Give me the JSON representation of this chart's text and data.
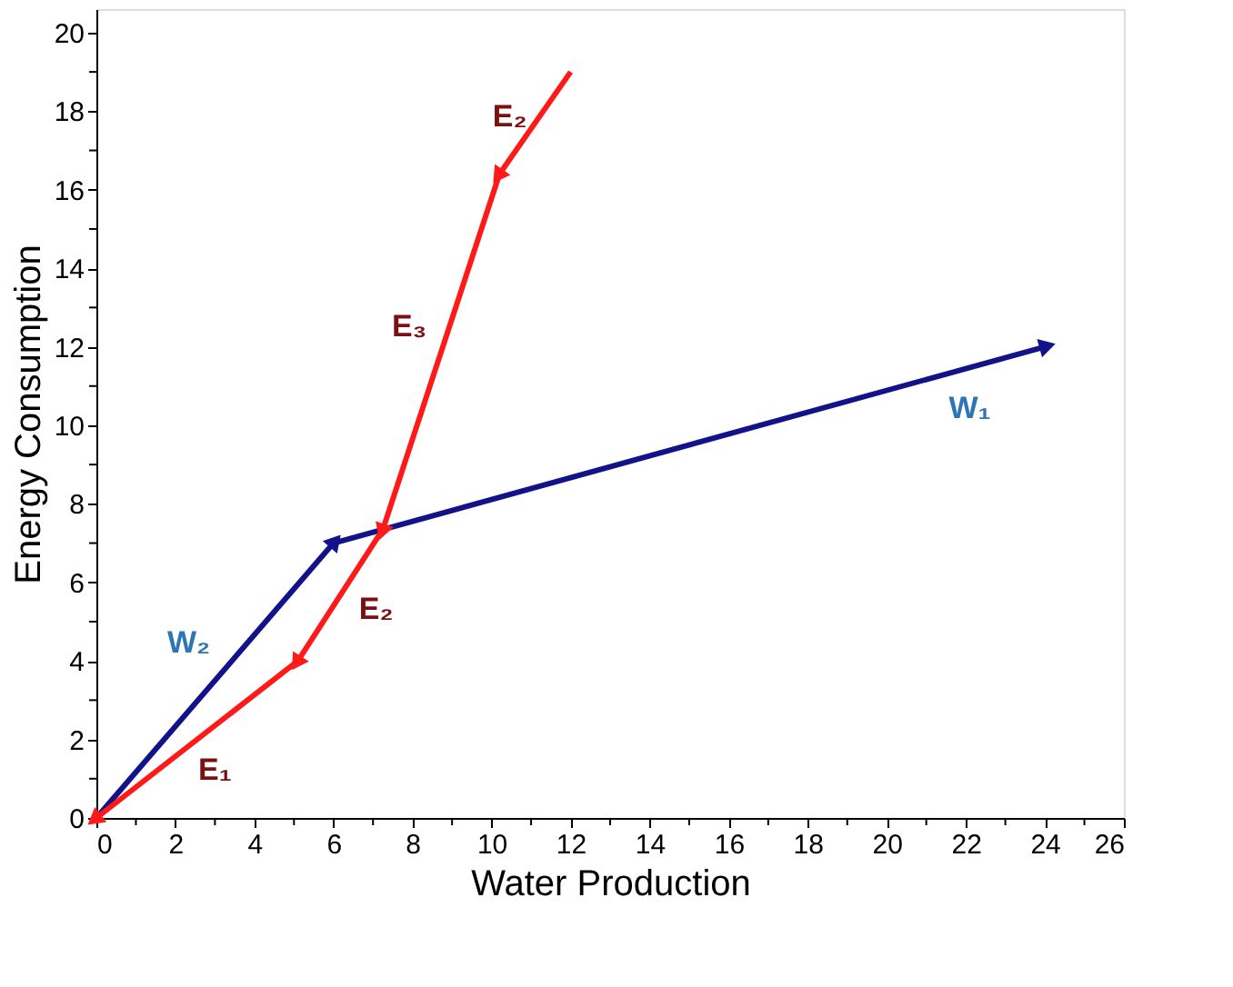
{
  "chart_data": {
    "type": "line",
    "xlabel": "Water Production",
    "ylabel": "Energy Consumption",
    "xlim": [
      0,
      26
    ],
    "ylim": [
      0,
      20.6
    ],
    "xticks": [
      0,
      {
        "value": 1,
        "label": null
      },
      2,
      {
        "value": 3,
        "label": null
      },
      4,
      {
        "value": 5,
        "label": null
      },
      6,
      {
        "value": 7,
        "label": null
      },
      8,
      {
        "value": 9,
        "label": null
      },
      10,
      {
        "value": 11,
        "label": null
      },
      12,
      {
        "value": 13,
        "label": null
      },
      14,
      {
        "value": 15,
        "label": null
      },
      16,
      {
        "value": 17,
        "label": null
      },
      18,
      {
        "value": 19,
        "label": null
      },
      20,
      {
        "value": 21,
        "label": null
      },
      22,
      {
        "value": 23,
        "label": null
      },
      24,
      {
        "value": 25,
        "label": null
      },
      26
    ],
    "yticks": [
      0,
      {
        "value": 1,
        "label": null
      },
      2,
      {
        "value": 3,
        "label": null
      },
      4,
      {
        "value": 5,
        "label": null
      },
      6,
      {
        "value": 7,
        "label": null
      },
      8,
      {
        "value": 9,
        "label": null
      },
      10,
      {
        "value": 11,
        "label": null
      },
      12,
      {
        "value": 13,
        "label": null
      },
      14,
      {
        "value": 15,
        "label": null
      },
      16,
      {
        "value": 17,
        "label": null
      },
      18,
      {
        "value": 19,
        "label": null
      },
      20
    ],
    "grid": false,
    "marker": "triangle",
    "line_style": "solid",
    "series": [
      {
        "color": "#12128a",
        "x": [
          0,
          6,
          24
        ],
        "values": [
          0,
          7,
          12
        ]
      },
      {
        "color": "#ff1a1a",
        "x": [
          12,
          10.2,
          7.25,
          5.1,
          0
        ],
        "values": [
          19,
          16.4,
          7.35,
          4,
          0
        ]
      }
    ],
    "annotations": [
      {
        "text": "E₂",
        "x": 11.2,
        "y": 17.84
      },
      {
        "text": "E₃",
        "x": 8.93,
        "y": 12.5
      },
      {
        "text": "E₂",
        "x": 5.93,
        "y": 5.3
      },
      {
        "text": "E₁",
        "x": 3,
        "y": 2.35
      },
      {
        "text": "W₂",
        "x": 3.81,
        "y": 4.45
      },
      {
        "text": "W₁",
        "x": 22.1,
        "y": 11.47
      }
    ]
  }
}
